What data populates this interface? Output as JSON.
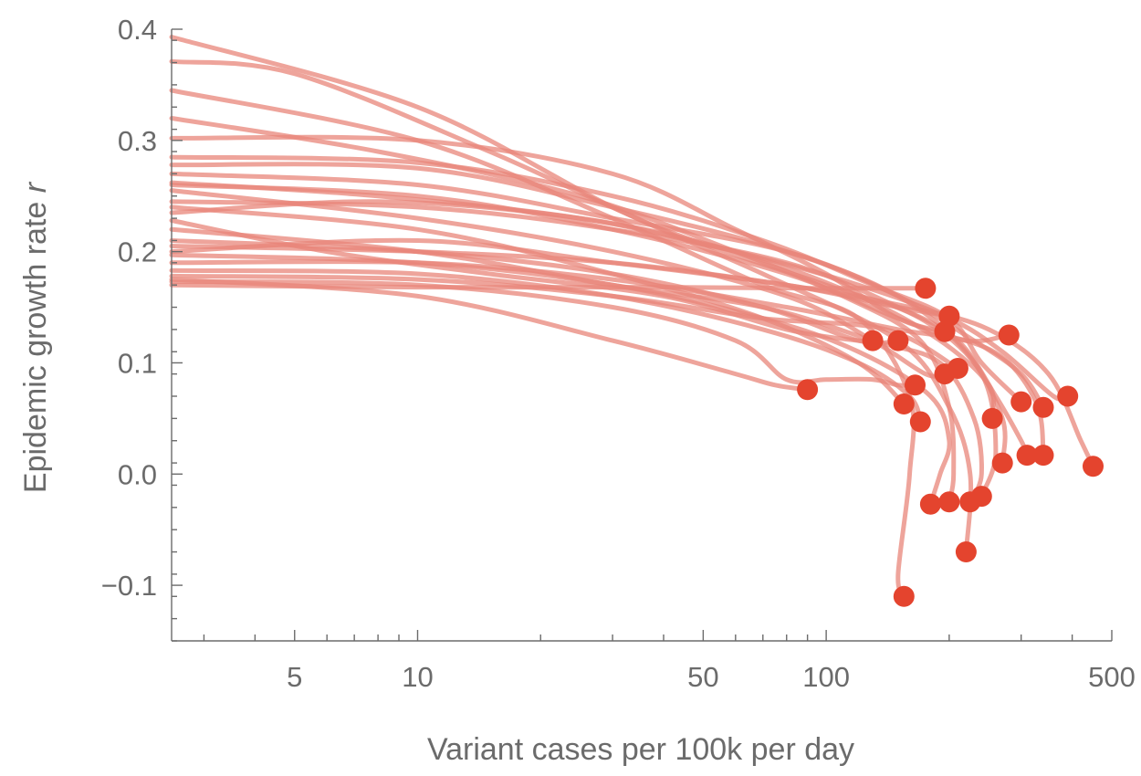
{
  "chart_data": {
    "type": "line",
    "title": "",
    "xlabel": "Variant cases per 100k per day",
    "ylabel": "Epidemic growth rate",
    "ylabel_var": "r",
    "x_scale": "log",
    "xlim": [
      2.5,
      500
    ],
    "ylim": [
      -0.15,
      0.4
    ],
    "x_major_ticks": [
      {
        "value": 5,
        "label": "5"
      },
      {
        "value": 10,
        "label": "10"
      },
      {
        "value": 50,
        "label": "50"
      },
      {
        "value": 100,
        "label": "100"
      },
      {
        "value": 500,
        "label": "500"
      }
    ],
    "y_ticks": [
      {
        "value": 0.4,
        "label": "0.4"
      },
      {
        "value": 0.3,
        "label": "0.3"
      },
      {
        "value": 0.2,
        "label": "0.2"
      },
      {
        "value": 0.1,
        "label": "0.1"
      },
      {
        "value": 0.0,
        "label": "0.0"
      },
      {
        "value": -0.1,
        "label": "−0.1"
      }
    ],
    "colors": {
      "line": "#e8857a",
      "point": "#e4442e",
      "axis": "#6b6b6b"
    },
    "series": [
      {
        "points": [
          [
            2.5,
            0.393
          ],
          [
            10,
            0.33
          ],
          [
            30,
            0.24
          ],
          [
            70,
            0.18
          ],
          [
            150,
            0.12
          ],
          [
            200,
            0.06
          ],
          [
            225,
            0.0
          ],
          [
            220,
            -0.07
          ]
        ]
      },
      {
        "points": [
          [
            2.5,
            0.371
          ],
          [
            5,
            0.36
          ],
          [
            15,
            0.29
          ],
          [
            40,
            0.22
          ],
          [
            100,
            0.17
          ],
          [
            170,
            0.14
          ],
          [
            240,
            0.09
          ],
          [
            260,
            0.02
          ],
          [
            240,
            -0.02
          ]
        ]
      },
      {
        "points": [
          [
            2.5,
            0.345
          ],
          [
            10,
            0.3
          ],
          [
            30,
            0.23
          ],
          [
            70,
            0.17
          ],
          [
            120,
            0.14
          ],
          [
            160,
            0.07
          ],
          [
            160,
            0.0
          ],
          [
            150,
            -0.09
          ],
          [
            155,
            -0.11
          ]
        ]
      },
      {
        "points": [
          [
            2.5,
            0.32
          ],
          [
            8,
            0.29
          ],
          [
            25,
            0.25
          ],
          [
            60,
            0.2
          ],
          [
            110,
            0.16
          ],
          [
            170,
            0.12
          ],
          [
            200,
            0.06
          ],
          [
            205,
            0.0
          ],
          [
            200,
            -0.025
          ]
        ]
      },
      {
        "points": [
          [
            2.5,
            0.302
          ],
          [
            10,
            0.3
          ],
          [
            30,
            0.27
          ],
          [
            60,
            0.22
          ],
          [
            100,
            0.18
          ],
          [
            150,
            0.14
          ],
          [
            195,
            0.128
          ]
        ]
      },
      {
        "points": [
          [
            2.5,
            0.285
          ],
          [
            10,
            0.28
          ],
          [
            30,
            0.25
          ],
          [
            70,
            0.21
          ],
          [
            130,
            0.17
          ],
          [
            200,
            0.14
          ],
          [
            240,
            0.1
          ],
          [
            300,
            0.065
          ]
        ]
      },
      {
        "points": [
          [
            2.5,
            0.278
          ],
          [
            10,
            0.275
          ],
          [
            30,
            0.24
          ],
          [
            80,
            0.2
          ],
          [
            150,
            0.16
          ],
          [
            220,
            0.11
          ],
          [
            270,
            0.05
          ],
          [
            270,
            0.01
          ]
        ]
      },
      {
        "points": [
          [
            2.5,
            0.27
          ],
          [
            10,
            0.26
          ],
          [
            30,
            0.23
          ],
          [
            80,
            0.2
          ],
          [
            150,
            0.16
          ],
          [
            230,
            0.12
          ],
          [
            300,
            0.09
          ],
          [
            340,
            0.06
          ]
        ]
      },
      {
        "points": [
          [
            2.5,
            0.262
          ],
          [
            8,
            0.25
          ],
          [
            25,
            0.23
          ],
          [
            60,
            0.2
          ],
          [
            120,
            0.17
          ],
          [
            200,
            0.14
          ],
          [
            270,
            0.11
          ],
          [
            360,
            0.07
          ],
          [
            390,
            0.07
          ]
        ]
      },
      {
        "points": [
          [
            2.5,
            0.255
          ],
          [
            10,
            0.23
          ],
          [
            30,
            0.2
          ],
          [
            80,
            0.16
          ],
          [
            130,
            0.12
          ],
          [
            175,
            0.09
          ],
          [
            195,
            0.09
          ]
        ]
      },
      {
        "points": [
          [
            2.5,
            0.245
          ],
          [
            10,
            0.24
          ],
          [
            30,
            0.22
          ],
          [
            80,
            0.19
          ],
          [
            150,
            0.15
          ],
          [
            210,
            0.12
          ],
          [
            260,
            0.07
          ],
          [
            300,
            0.03
          ],
          [
            310,
            0.017
          ]
        ]
      },
      {
        "points": [
          [
            2.5,
            0.235
          ],
          [
            8,
            0.245
          ],
          [
            25,
            0.23
          ],
          [
            60,
            0.2
          ],
          [
            120,
            0.16
          ],
          [
            190,
            0.12
          ],
          [
            250,
            0.08
          ],
          [
            255,
            0.05
          ]
        ]
      },
      {
        "points": [
          [
            2.5,
            0.228
          ],
          [
            6,
            0.2
          ],
          [
            15,
            0.18
          ],
          [
            40,
            0.16
          ],
          [
            80,
            0.13
          ],
          [
            120,
            0.12
          ],
          [
            130,
            0.12
          ]
        ]
      },
      {
        "points": [
          [
            2.5,
            0.22
          ],
          [
            10,
            0.2
          ],
          [
            30,
            0.17
          ],
          [
            70,
            0.15
          ],
          [
            130,
            0.12
          ],
          [
            190,
            0.1
          ],
          [
            230,
            0.05
          ],
          [
            240,
            0.0
          ],
          [
            225,
            -0.025
          ]
        ]
      },
      {
        "points": [
          [
            2.5,
            0.205
          ],
          [
            10,
            0.2
          ],
          [
            30,
            0.19
          ],
          [
            80,
            0.17
          ],
          [
            160,
            0.15
          ],
          [
            250,
            0.13
          ],
          [
            350,
            0.09
          ],
          [
            420,
            0.03
          ],
          [
            450,
            0.007
          ]
        ]
      },
      {
        "points": [
          [
            2.5,
            0.197
          ],
          [
            10,
            0.19
          ],
          [
            30,
            0.17
          ],
          [
            70,
            0.14
          ],
          [
            120,
            0.11
          ],
          [
            180,
            0.07
          ],
          [
            200,
            0.03
          ],
          [
            190,
            0.0
          ],
          [
            180,
            -0.027
          ]
        ]
      },
      {
        "points": [
          [
            2.5,
            0.19
          ],
          [
            10,
            0.19
          ],
          [
            30,
            0.175
          ],
          [
            80,
            0.15
          ],
          [
            150,
            0.13
          ],
          [
            220,
            0.12
          ],
          [
            280,
            0.1
          ],
          [
            330,
            0.06
          ],
          [
            340,
            0.017
          ]
        ]
      },
      {
        "points": [
          [
            2.5,
            0.183
          ],
          [
            10,
            0.18
          ],
          [
            30,
            0.16
          ],
          [
            70,
            0.13
          ],
          [
            120,
            0.1
          ],
          [
            160,
            0.07
          ],
          [
            170,
            0.047
          ]
        ]
      },
      {
        "points": [
          [
            2.5,
            0.178
          ],
          [
            10,
            0.175
          ],
          [
            30,
            0.16
          ],
          [
            70,
            0.14
          ],
          [
            140,
            0.13
          ],
          [
            210,
            0.095
          ]
        ]
      },
      {
        "points": [
          [
            2.5,
            0.173
          ],
          [
            10,
            0.17
          ],
          [
            30,
            0.15
          ],
          [
            60,
            0.12
          ],
          [
            80,
            0.085
          ],
          [
            100,
            0.085
          ],
          [
            130,
            0.085
          ],
          [
            150,
            0.08
          ],
          [
            165,
            0.08
          ]
        ]
      },
      {
        "points": [
          [
            2.5,
            0.17
          ],
          [
            10,
            0.168
          ],
          [
            40,
            0.168
          ],
          [
            100,
            0.167
          ],
          [
            175,
            0.167
          ]
        ]
      },
      {
        "points": [
          [
            2.5,
            0.175
          ],
          [
            10,
            0.16
          ],
          [
            30,
            0.12
          ],
          [
            60,
            0.09
          ],
          [
            75,
            0.08
          ],
          [
            90,
            0.076
          ]
        ]
      },
      {
        "points": [
          [
            2.5,
            0.2
          ],
          [
            10,
            0.21
          ],
          [
            30,
            0.19
          ],
          [
            80,
            0.17
          ],
          [
            150,
            0.15
          ],
          [
            200,
            0.142
          ]
        ]
      },
      {
        "points": [
          [
            2.5,
            0.26
          ],
          [
            10,
            0.25
          ],
          [
            30,
            0.22
          ],
          [
            80,
            0.18
          ],
          [
            150,
            0.14
          ],
          [
            220,
            0.12
          ],
          [
            280,
            0.125
          ]
        ]
      },
      {
        "points": [
          [
            2.5,
            0.21
          ],
          [
            10,
            0.2
          ],
          [
            30,
            0.18
          ],
          [
            70,
            0.15
          ],
          [
            120,
            0.12
          ],
          [
            150,
            0.12
          ]
        ]
      },
      {
        "points": [
          [
            2.5,
            0.24
          ],
          [
            10,
            0.22
          ],
          [
            30,
            0.18
          ],
          [
            70,
            0.14
          ],
          [
            120,
            0.1
          ],
          [
            155,
            0.063
          ]
        ]
      }
    ]
  }
}
